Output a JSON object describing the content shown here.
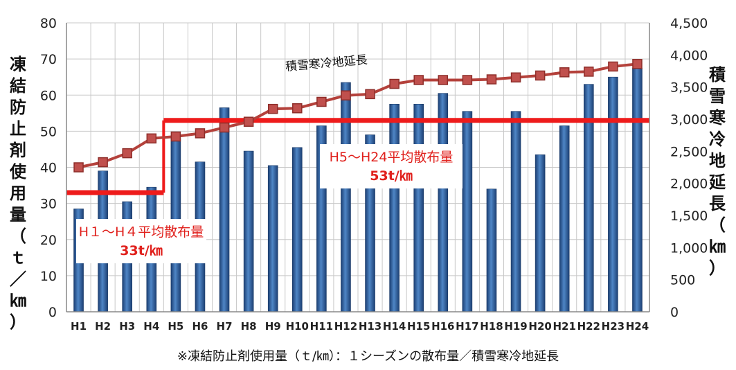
{
  "chart_data": {
    "type": "bar",
    "categories": [
      "H1",
      "H2",
      "H3",
      "H4",
      "H5",
      "H6",
      "H7",
      "H8",
      "H9",
      "H10",
      "H11",
      "H12",
      "H13",
      "H14",
      "H15",
      "H16",
      "H17",
      "H18",
      "H19",
      "H20",
      "H21",
      "H22",
      "H23",
      "H24"
    ],
    "series": [
      {
        "axis": "left",
        "type": "bar",
        "values": [
          28.5,
          39,
          30.5,
          34.5,
          48,
          41.5,
          56.5,
          44.5,
          40.5,
          45.5,
          51.5,
          63.5,
          49,
          57.5,
          57.5,
          60.5,
          55.5,
          34,
          55.5,
          43.5,
          51.5,
          63,
          65,
          67.5
        ],
        "color": "#2f5f9e"
      },
      {
        "axis": "right",
        "type": "line",
        "name": "積雪寒冷地延長",
        "values": [
          2250,
          2330,
          2470,
          2700,
          2730,
          2780,
          2870,
          2960,
          3160,
          3170,
          3270,
          3370,
          3390,
          3550,
          3610,
          3610,
          3610,
          3620,
          3650,
          3680,
          3730,
          3740,
          3820,
          3860
        ],
        "color": "#b4413b"
      }
    ],
    "yleft": {
      "label": "凍結防止剤使用量（ｔ／㎞）",
      "ticks": [
        "0",
        "10",
        "20",
        "30",
        "40",
        "50",
        "60",
        "70",
        "80"
      ],
      "ylim": [
        0,
        80
      ]
    },
    "yright": {
      "label": "積雪寒冷地延長（㎞）",
      "ticks": [
        "0",
        "500",
        "1,000",
        "1,500",
        "2,000",
        "2,500",
        "3,000",
        "3,500",
        "4,000",
        "4,500"
      ],
      "ylim": [
        0,
        4500
      ]
    },
    "averages": [
      {
        "from": "H1",
        "to": "H4",
        "value": 33,
        "label_line1": "H１～H４平均散布量",
        "label_line2": "33t/㎞",
        "color": "#ee1b1b"
      },
      {
        "from": "H5",
        "to": "H24",
        "value": 53,
        "label_line1": "H5～H24平均散布量",
        "label_line2": "53t/㎞",
        "color": "#ee1b1b"
      }
    ],
    "grid": true
  },
  "footnote": "※凍結防止剤使用量（ｔ/㎞）：１シーズンの散布量／積雪寒冷地延長"
}
